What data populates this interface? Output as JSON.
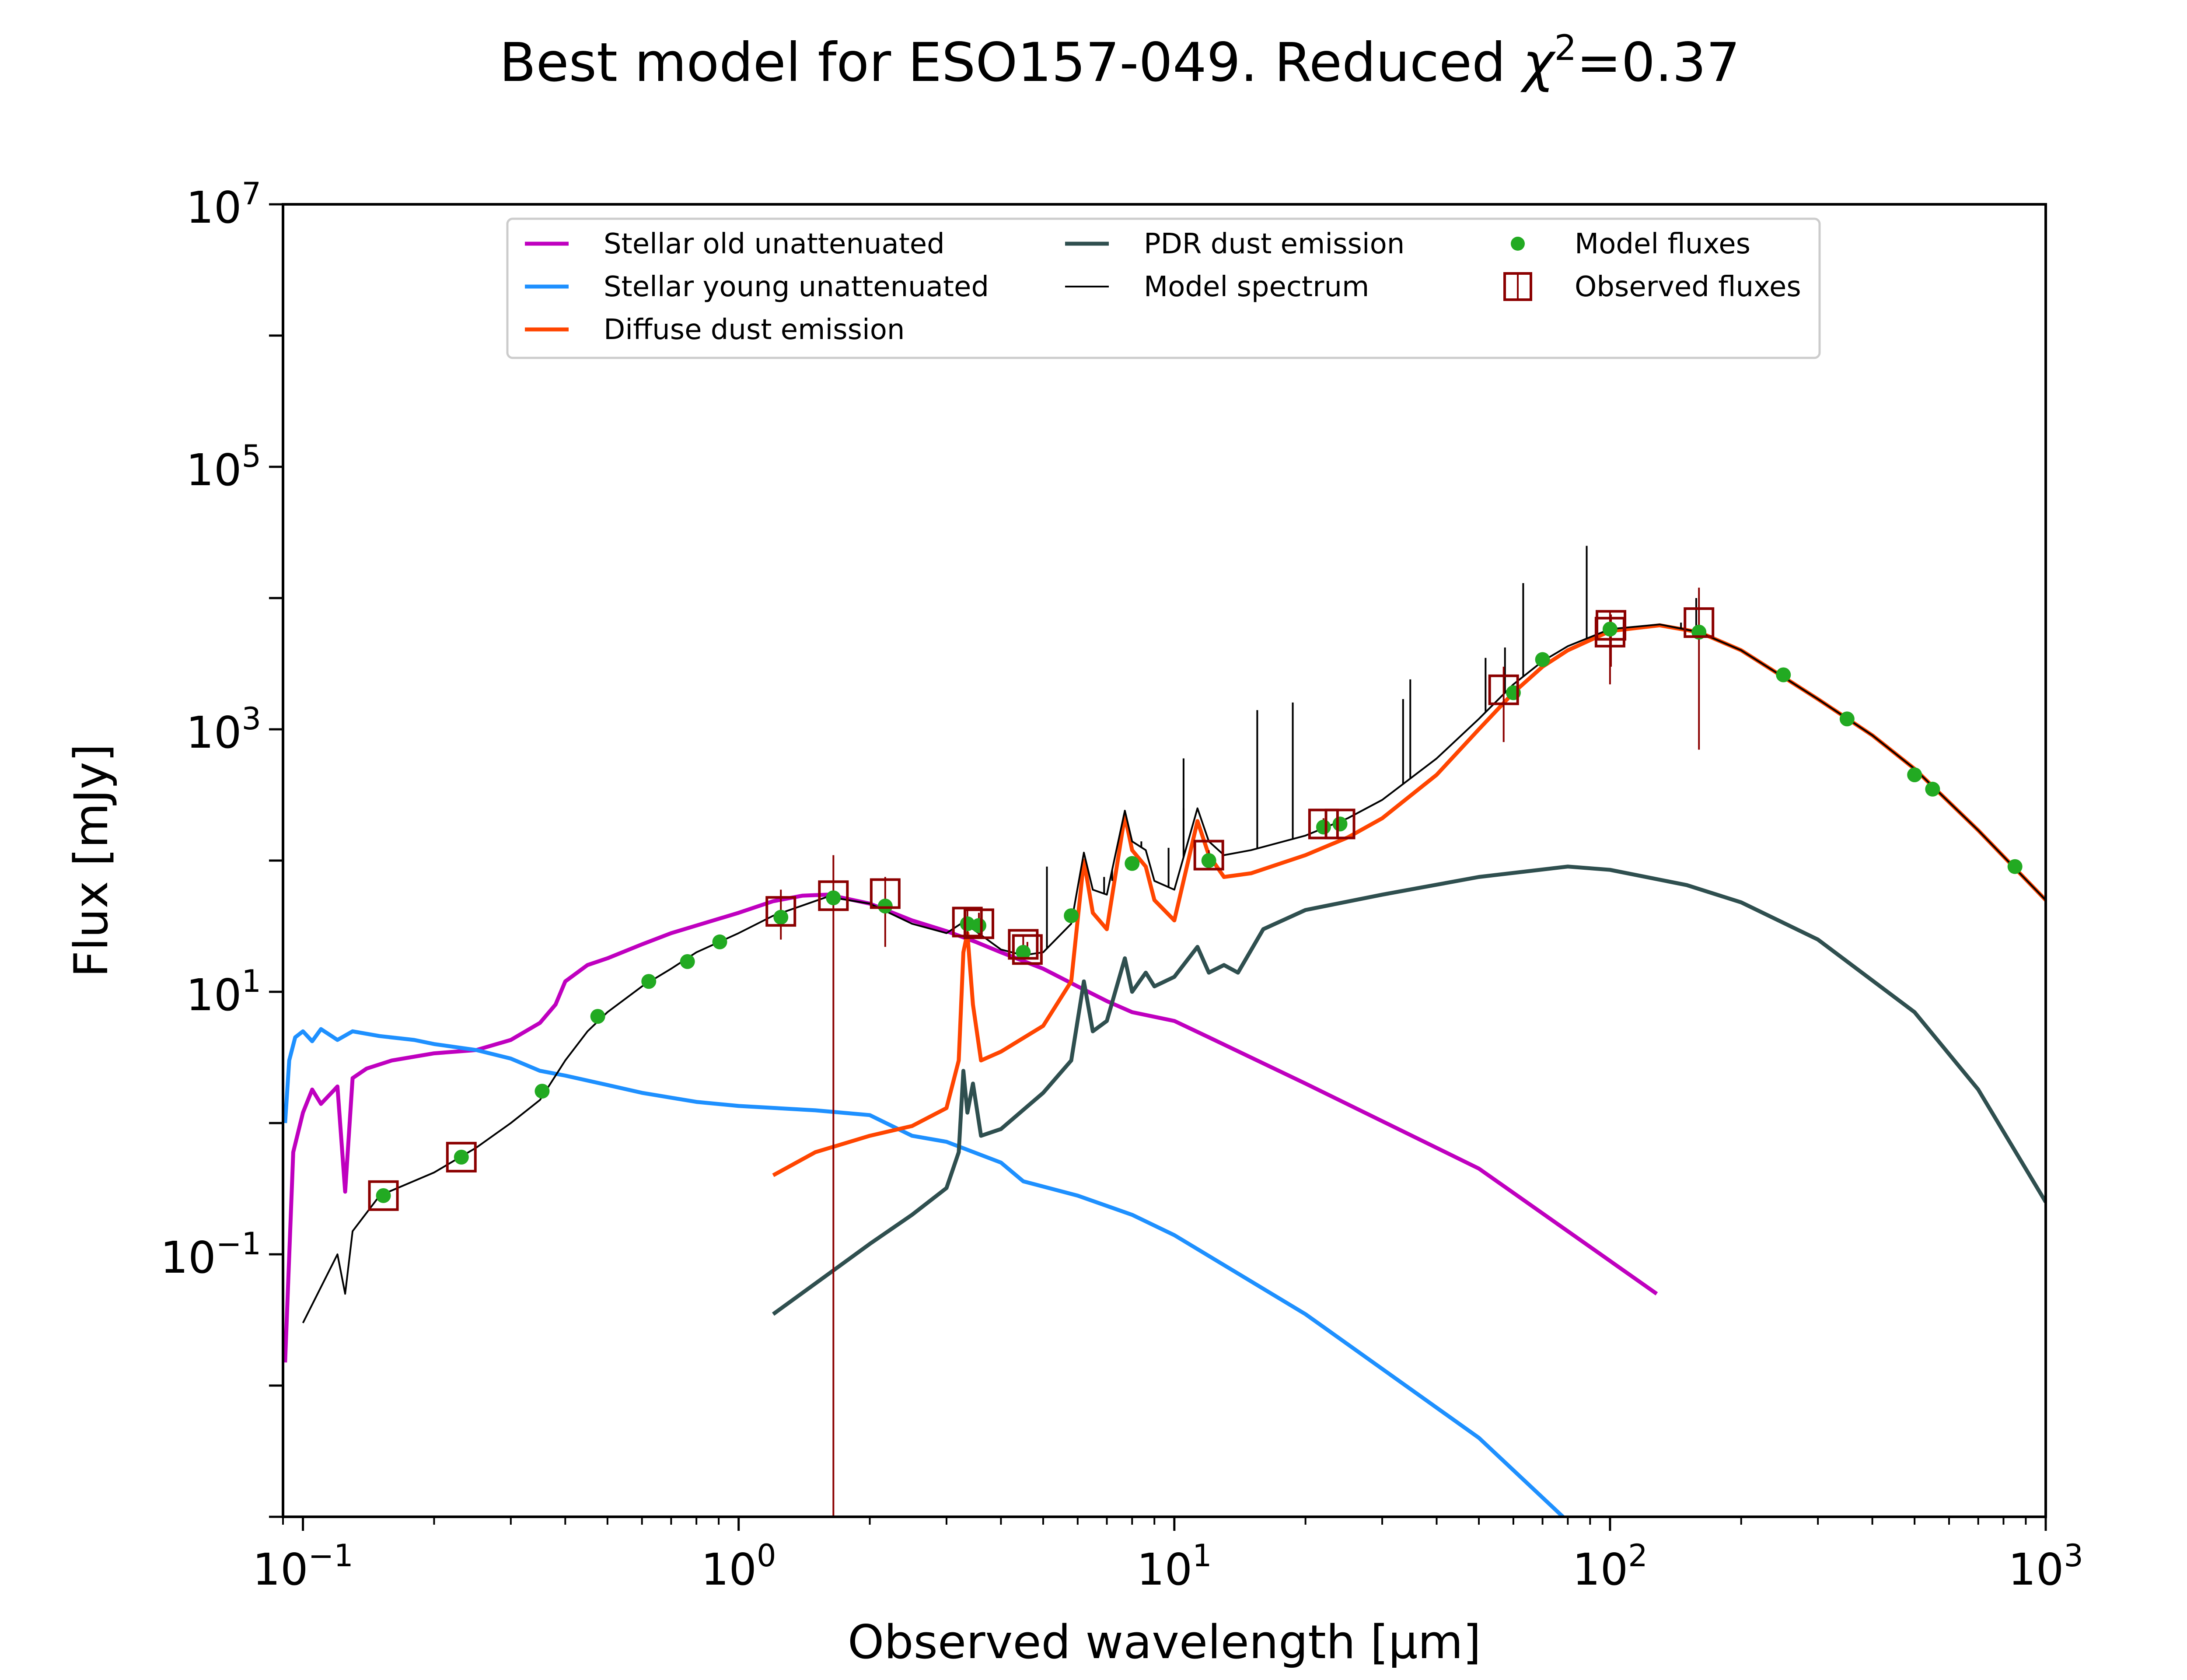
{
  "chart_data": {
    "type": "line",
    "title": "Best model for ESO157-049. Reduced χ²=0.37",
    "title_main": "Best model for ESO157-049. Reduced ",
    "title_chi": "χ",
    "title_sup": "2",
    "title_tail": "=0.37",
    "xlabel": "Observed wavelength [μm]",
    "ylabel": "Flux [mJy]",
    "x_scale": "log",
    "y_scale": "log",
    "xlim": [
      0.09,
      1000
    ],
    "ylim": [
      0.001,
      10000000
    ],
    "x_ticks": [
      {
        "value": 0.1,
        "base": "10",
        "exp": "−1"
      },
      {
        "value": 1,
        "base": "10",
        "exp": "0"
      },
      {
        "value": 10,
        "base": "10",
        "exp": "1"
      },
      {
        "value": 100,
        "base": "10",
        "exp": "2"
      },
      {
        "value": 1000,
        "base": "10",
        "exp": "3"
      }
    ],
    "y_ticks": [
      {
        "value": 0.1,
        "base": "10",
        "exp": "−1"
      },
      {
        "value": 10,
        "base": "10",
        "exp": "1"
      },
      {
        "value": 1000,
        "base": "10",
        "exp": "3"
      },
      {
        "value": 100000,
        "base": "10",
        "exp": "5"
      },
      {
        "value": 10000000,
        "base": "10",
        "exp": "7"
      }
    ],
    "legend_position": "upper center",
    "legend": [
      {
        "label": "Stellar old unattenuated",
        "kind": "line",
        "color": "#bf00bf"
      },
      {
        "label": "Stellar young unattenuated",
        "kind": "line",
        "color": "#1e90ff"
      },
      {
        "label": "Diffuse dust emission",
        "kind": "line",
        "color": "#ff4500"
      },
      {
        "label": "PDR dust emission",
        "kind": "line",
        "color": "#2f4f4f"
      },
      {
        "label": "Model spectrum",
        "kind": "thinline",
        "color": "#000000"
      },
      {
        "label": "Model fluxes",
        "kind": "dot",
        "color": "#22aa22"
      },
      {
        "label": "Observed fluxes",
        "kind": "square",
        "color": "#8b0000"
      }
    ],
    "series": [
      {
        "name": "Stellar old unattenuated",
        "color": "#bf00bf",
        "points": [
          [
            0.091,
            0.015
          ],
          [
            0.095,
            0.6
          ],
          [
            0.1,
            1.2
          ],
          [
            0.105,
            1.8
          ],
          [
            0.11,
            1.4
          ],
          [
            0.12,
            1.9
          ],
          [
            0.125,
            0.3
          ],
          [
            0.13,
            2.2
          ],
          [
            0.14,
            2.6
          ],
          [
            0.16,
            3.0
          ],
          [
            0.2,
            3.4
          ],
          [
            0.25,
            3.6
          ],
          [
            0.3,
            4.3
          ],
          [
            0.35,
            5.8
          ],
          [
            0.38,
            8.0
          ],
          [
            0.4,
            12
          ],
          [
            0.45,
            16
          ],
          [
            0.5,
            18
          ],
          [
            0.6,
            23
          ],
          [
            0.7,
            28
          ],
          [
            0.8,
            32
          ],
          [
            1.0,
            40
          ],
          [
            1.2,
            49
          ],
          [
            1.4,
            54
          ],
          [
            1.6,
            55
          ],
          [
            2.0,
            47
          ],
          [
            2.5,
            35
          ],
          [
            3.0,
            29
          ],
          [
            3.5,
            24
          ],
          [
            4.0,
            20
          ],
          [
            5.0,
            15
          ],
          [
            6.0,
            11
          ],
          [
            7.0,
            8.5
          ],
          [
            8.0,
            7
          ],
          [
            10,
            6
          ],
          [
            12,
            4.5
          ],
          [
            20,
            2
          ],
          [
            50,
            0.45
          ],
          [
            128,
            0.05
          ]
        ]
      },
      {
        "name": "Stellar young unattenuated",
        "color": "#1e90ff",
        "points": [
          [
            0.091,
            1.0
          ],
          [
            0.093,
            3.0
          ],
          [
            0.096,
            4.5
          ],
          [
            0.1,
            5.0
          ],
          [
            0.105,
            4.2
          ],
          [
            0.11,
            5.2
          ],
          [
            0.12,
            4.3
          ],
          [
            0.13,
            5.0
          ],
          [
            0.15,
            4.6
          ],
          [
            0.18,
            4.3
          ],
          [
            0.2,
            4.0
          ],
          [
            0.25,
            3.6
          ],
          [
            0.3,
            3.1
          ],
          [
            0.35,
            2.5
          ],
          [
            0.4,
            2.3
          ],
          [
            0.5,
            1.95
          ],
          [
            0.6,
            1.7
          ],
          [
            0.8,
            1.45
          ],
          [
            1.0,
            1.35
          ],
          [
            1.5,
            1.25
          ],
          [
            2.0,
            1.15
          ],
          [
            2.5,
            0.8
          ],
          [
            3.0,
            0.72
          ],
          [
            4.0,
            0.5
          ],
          [
            4.5,
            0.36
          ],
          [
            6.0,
            0.28
          ],
          [
            8.0,
            0.2
          ],
          [
            10,
            0.14
          ],
          [
            20,
            0.035
          ],
          [
            50,
            0.004
          ],
          [
            78,
            0.001
          ]
        ]
      },
      {
        "name": "Diffuse dust emission",
        "color": "#ff4500",
        "points": [
          [
            1.2,
            0.4
          ],
          [
            1.5,
            0.6
          ],
          [
            2.0,
            0.8
          ],
          [
            2.5,
            0.95
          ],
          [
            3.0,
            1.3
          ],
          [
            3.2,
            3
          ],
          [
            3.28,
            20
          ],
          [
            3.35,
            28
          ],
          [
            3.45,
            8
          ],
          [
            3.6,
            3
          ],
          [
            4.0,
            3.5
          ],
          [
            5.0,
            5.5
          ],
          [
            5.8,
            12
          ],
          [
            6.2,
            100
          ],
          [
            6.5,
            40
          ],
          [
            7.0,
            30
          ],
          [
            7.7,
            220
          ],
          [
            8.0,
            120
          ],
          [
            8.6,
            90
          ],
          [
            9.0,
            50
          ],
          [
            10,
            35
          ],
          [
            11.3,
            200
          ],
          [
            12,
            110
          ],
          [
            13,
            75
          ],
          [
            15,
            80
          ],
          [
            20,
            110
          ],
          [
            25,
            150
          ],
          [
            30,
            210
          ],
          [
            40,
            450
          ],
          [
            50,
            1000
          ],
          [
            60,
            1900
          ],
          [
            70,
            3000
          ],
          [
            80,
            4000
          ],
          [
            100,
            5600
          ],
          [
            130,
            6200
          ],
          [
            160,
            5500
          ],
          [
            200,
            4000
          ],
          [
            250,
            2500
          ],
          [
            300,
            1700
          ],
          [
            400,
            900
          ],
          [
            500,
            500
          ],
          [
            700,
            170
          ],
          [
            1000,
            50
          ]
        ]
      },
      {
        "name": "PDR dust emission",
        "color": "#2f4f4f",
        "points": [
          [
            1.2,
            0.035
          ],
          [
            1.6,
            0.07
          ],
          [
            2.0,
            0.12
          ],
          [
            2.5,
            0.2
          ],
          [
            3.0,
            0.32
          ],
          [
            3.2,
            0.6
          ],
          [
            3.28,
            2.5
          ],
          [
            3.35,
            1.2
          ],
          [
            3.45,
            2
          ],
          [
            3.6,
            0.8
          ],
          [
            4.0,
            0.9
          ],
          [
            5.0,
            1.7
          ],
          [
            5.8,
            3
          ],
          [
            6.2,
            12
          ],
          [
            6.5,
            5
          ],
          [
            7.0,
            6
          ],
          [
            7.7,
            18
          ],
          [
            8.0,
            10
          ],
          [
            8.6,
            14
          ],
          [
            9.0,
            11
          ],
          [
            10,
            13
          ],
          [
            11.3,
            22
          ],
          [
            12,
            14
          ],
          [
            13,
            16
          ],
          [
            14,
            14
          ],
          [
            16,
            30
          ],
          [
            20,
            42
          ],
          [
            30,
            55
          ],
          [
            50,
            75
          ],
          [
            80,
            90
          ],
          [
            100,
            85
          ],
          [
            150,
            65
          ],
          [
            200,
            48
          ],
          [
            300,
            25
          ],
          [
            500,
            7
          ],
          [
            700,
            1.8
          ],
          [
            1000,
            0.25
          ]
        ]
      },
      {
        "name": "Model spectrum",
        "color": "#000000",
        "points": [
          [
            0.1,
            0.03
          ],
          [
            0.12,
            0.1
          ],
          [
            0.125,
            0.05
          ],
          [
            0.13,
            0.15
          ],
          [
            0.15,
            0.28
          ],
          [
            0.2,
            0.42
          ],
          [
            0.25,
            0.65
          ],
          [
            0.3,
            1.0
          ],
          [
            0.35,
            1.5
          ],
          [
            0.4,
            3.0
          ],
          [
            0.45,
            5.0
          ],
          [
            0.5,
            7
          ],
          [
            0.6,
            11
          ],
          [
            0.7,
            15
          ],
          [
            0.8,
            20
          ],
          [
            1.0,
            28
          ],
          [
            1.2,
            38
          ],
          [
            1.6,
            53
          ],
          [
            2.0,
            47
          ],
          [
            2.5,
            33
          ],
          [
            3.0,
            28
          ],
          [
            3.28,
            34
          ],
          [
            3.5,
            29
          ],
          [
            4.0,
            21
          ],
          [
            4.5,
            19
          ],
          [
            5.0,
            20
          ],
          [
            5.8,
            33
          ],
          [
            6.2,
            115
          ],
          [
            6.5,
            60
          ],
          [
            7.0,
            55
          ],
          [
            7.7,
            240
          ],
          [
            8.0,
            140
          ],
          [
            8.6,
            120
          ],
          [
            9.0,
            70
          ],
          [
            10,
            60
          ],
          [
            11.3,
            250
          ],
          [
            12,
            140
          ],
          [
            13,
            110
          ],
          [
            15,
            120
          ],
          [
            20,
            155
          ],
          [
            25,
            210
          ],
          [
            30,
            290
          ],
          [
            40,
            600
          ],
          [
            50,
            1200
          ],
          [
            60,
            2200
          ],
          [
            70,
            3300
          ],
          [
            80,
            4300
          ],
          [
            100,
            5800
          ],
          [
            130,
            6300
          ],
          [
            160,
            5500
          ],
          [
            200,
            4000
          ],
          [
            250,
            2500
          ],
          [
            300,
            1700
          ],
          [
            400,
            900
          ],
          [
            500,
            500
          ],
          [
            700,
            170
          ],
          [
            1000,
            50
          ]
        ]
      }
    ],
    "emission_lines": [
      [
        5.1,
        90
      ],
      [
        6.9,
        75
      ],
      [
        7.2,
        70
      ],
      [
        8.4,
        140
      ],
      [
        9.7,
        125
      ],
      [
        10.5,
        250
      ],
      [
        10.5,
        600
      ],
      [
        15.5,
        1400
      ],
      [
        18.7,
        1600
      ],
      [
        33.5,
        1700
      ],
      [
        34.8,
        2400
      ],
      [
        51.8,
        3500
      ],
      [
        57.4,
        4200
      ],
      [
        63.2,
        13000
      ],
      [
        88.4,
        25000
      ],
      [
        145.5,
        6500
      ],
      [
        157.7,
        10000
      ]
    ],
    "model_fluxes": [
      [
        0.153,
        0.28
      ],
      [
        0.231,
        0.55
      ],
      [
        0.354,
        1.75
      ],
      [
        0.475,
        6.5
      ],
      [
        0.622,
        12
      ],
      [
        0.763,
        17
      ],
      [
        0.905,
        24
      ],
      [
        1.25,
        37
      ],
      [
        1.65,
        52
      ],
      [
        2.17,
        45
      ],
      [
        3.35,
        33
      ],
      [
        3.56,
        32
      ],
      [
        4.5,
        20
      ],
      [
        5.8,
        38
      ],
      [
        8.0,
        95
      ],
      [
        12,
        100
      ],
      [
        22,
        180
      ],
      [
        24,
        190
      ],
      [
        60,
        1900
      ],
      [
        70,
        3400
      ],
      [
        100,
        5800
      ],
      [
        160,
        5500
      ],
      [
        250,
        2600
      ],
      [
        350,
        1200
      ],
      [
        500,
        450
      ],
      [
        550,
        350
      ],
      [
        850,
        90
      ]
    ],
    "observed_fluxes": [
      {
        "x": 0.153,
        "y": 0.28,
        "err": [
          0.28,
          0.28
        ]
      },
      {
        "x": 0.231,
        "y": 0.55,
        "err": [
          0.55,
          0.55
        ]
      },
      {
        "x": 1.25,
        "y": 41,
        "err": [
          25,
          60
        ]
      },
      {
        "x": 1.65,
        "y": 54,
        "err": [
          0.001,
          110
        ]
      },
      {
        "x": 2.17,
        "y": 56,
        "err": [
          22,
          75
        ]
      },
      {
        "x": 3.35,
        "y": 34,
        "err": [
          27,
          42
        ]
      },
      {
        "x": 3.56,
        "y": 33,
        "err": [
          26,
          40
        ]
      },
      {
        "x": 4.5,
        "y": 23,
        "err": [
          19,
          27
        ]
      },
      {
        "x": 4.6,
        "y": 21,
        "err": [
          18,
          24
        ]
      },
      {
        "x": 12,
        "y": 110,
        "err": [
          100,
          120
        ]
      },
      {
        "x": 22,
        "y": 190,
        "err": [
          170,
          210
        ]
      },
      {
        "x": 24,
        "y": 190,
        "err": [
          170,
          210
        ]
      },
      {
        "x": 57,
        "y": 2000,
        "err": [
          800,
          3000
        ]
      },
      {
        "x": 100,
        "y": 5500,
        "err": [
          2200,
          8000
        ]
      },
      {
        "x": 100.5,
        "y": 6200,
        "err": [
          3000,
          7500
        ]
      },
      {
        "x": 160,
        "y": 6500,
        "err": [
          700,
          12000
        ]
      }
    ]
  }
}
